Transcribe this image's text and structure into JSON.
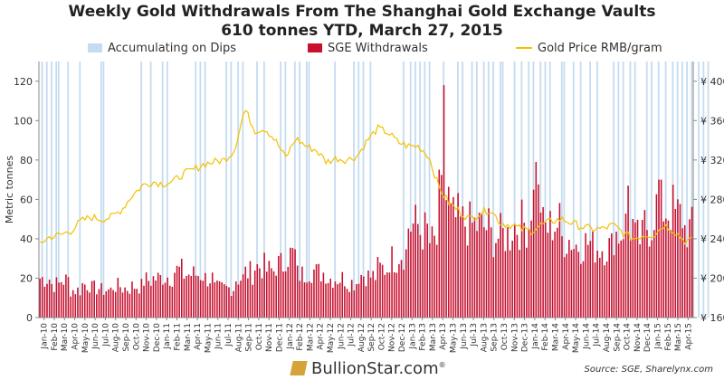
{
  "chart_data": {
    "type": "bar+line",
    "title": "Weekly Gold Withdrawals From The Shanghai Gold Exchange Vaults",
    "subtitle": "610 tonnes YTD, March 27, 2015",
    "ylabel": "Metric tonnes",
    "ylim": [
      0,
      130
    ],
    "yticks": [
      "0",
      "20",
      "40",
      "60",
      "80",
      "100",
      "120"
    ],
    "y2lim": [
      160,
      420
    ],
    "y2ticks": [
      "¥ 160",
      "¥ 200",
      "¥ 240",
      "¥ 280",
      "¥ 320",
      "¥ 360",
      "¥ 400"
    ],
    "legend": {
      "dips": "Accumulating on Dips",
      "withdrawals": "SGE Withdrawals",
      "price": "Gold Price RMB/gram"
    },
    "colors": {
      "withdrawals": "#c8102e",
      "dips": "#c5dcf0",
      "price": "#f2c200",
      "axis": "#888888"
    },
    "months": [
      "Jan-10",
      "Feb-10",
      "Mar-10",
      "Apr-10",
      "May-10",
      "Jun-10",
      "Jul-10",
      "Aug-10",
      "Sep-10",
      "Oct-10",
      "Nov-10",
      "Dec-10",
      "Jan-11",
      "Feb-11",
      "Mar-11",
      "Apr-11",
      "May-11",
      "Jun-11",
      "Jul-11",
      "Aug-11",
      "Sep-11",
      "Oct-11",
      "Nov-11",
      "Dec-11",
      "Jan-12",
      "Feb-12",
      "Mar-12",
      "Apr-12",
      "May-12",
      "Jun-12",
      "Jul-12",
      "Aug-12",
      "Sep-12",
      "Oct-12",
      "Nov-12",
      "Dec-12",
      "Jan-13",
      "Feb-13",
      "Mar-13",
      "Apr-13",
      "May-13",
      "Jun-13",
      "Jul-13",
      "Aug-13",
      "Sep-13",
      "Oct-13",
      "Nov-13",
      "Dec-13",
      "Jan-14",
      "Feb-14",
      "Mar-14",
      "Apr-14",
      "May-14",
      "Jun-14",
      "Jul-14",
      "Aug-14",
      "Sep-14",
      "Oct-14",
      "Nov-14",
      "Dec-14",
      "Jan-15",
      "Feb-15",
      "Mar-15",
      "Apr-15"
    ],
    "monthly_withdrawals": [
      20,
      17,
      19,
      14,
      17,
      15,
      14,
      16,
      15,
      16,
      19,
      20,
      21,
      24,
      22,
      22,
      20,
      15,
      15,
      20,
      23,
      26,
      24,
      27,
      32,
      22,
      24,
      23,
      20,
      20,
      18,
      22,
      21,
      25,
      30,
      33,
      47,
      44,
      38,
      60,
      50,
      48,
      47,
      46,
      41,
      42,
      47,
      48,
      60,
      46,
      48,
      40,
      37,
      38,
      36,
      36,
      43,
      47,
      40,
      47,
      56,
      55,
      52,
      45
    ],
    "monthly_price_rmb": [
      236,
      242,
      244,
      248,
      258,
      262,
      260,
      262,
      270,
      284,
      294,
      298,
      296,
      298,
      306,
      310,
      316,
      318,
      320,
      330,
      372,
      350,
      352,
      340,
      322,
      342,
      334,
      330,
      318,
      322,
      320,
      324,
      340,
      352,
      348,
      338,
      334,
      334,
      324,
      292,
      276,
      268,
      260,
      266,
      270,
      256,
      254,
      250,
      248,
      254,
      258,
      260,
      256,
      252,
      250,
      250,
      254,
      246,
      240,
      244,
      244,
      254,
      248,
      238
    ],
    "spikes": [
      {
        "month": "Apr-13",
        "value": 118
      },
      {
        "month": "Jan-14",
        "value": 79
      },
      {
        "month": "Jan-15",
        "value": 70
      },
      {
        "month": "Oct-14",
        "value": 67
      }
    ],
    "dip_weeks": [
      1,
      3,
      5,
      7,
      8,
      12,
      17,
      26,
      27,
      43,
      47,
      52,
      54,
      66,
      68,
      70,
      79,
      81,
      84,
      86,
      92,
      95,
      102,
      104,
      108,
      110,
      113,
      114,
      125,
      133,
      135,
      137,
      140,
      154,
      157,
      159,
      161,
      163,
      165,
      171,
      177,
      179,
      183,
      185,
      188,
      190,
      192,
      195,
      196,
      201,
      204,
      207,
      209,
      212,
      214,
      216,
      221,
      222,
      226,
      229,
      233,
      236,
      243,
      245,
      247,
      250,
      252,
      257,
      259,
      262,
      265,
      268,
      270,
      272,
      274,
      276,
      279,
      281,
      283
    ]
  },
  "source": "Source: SGE, Sharelynx.com",
  "brand": "BullionStar.com",
  "brand_mark": "®"
}
